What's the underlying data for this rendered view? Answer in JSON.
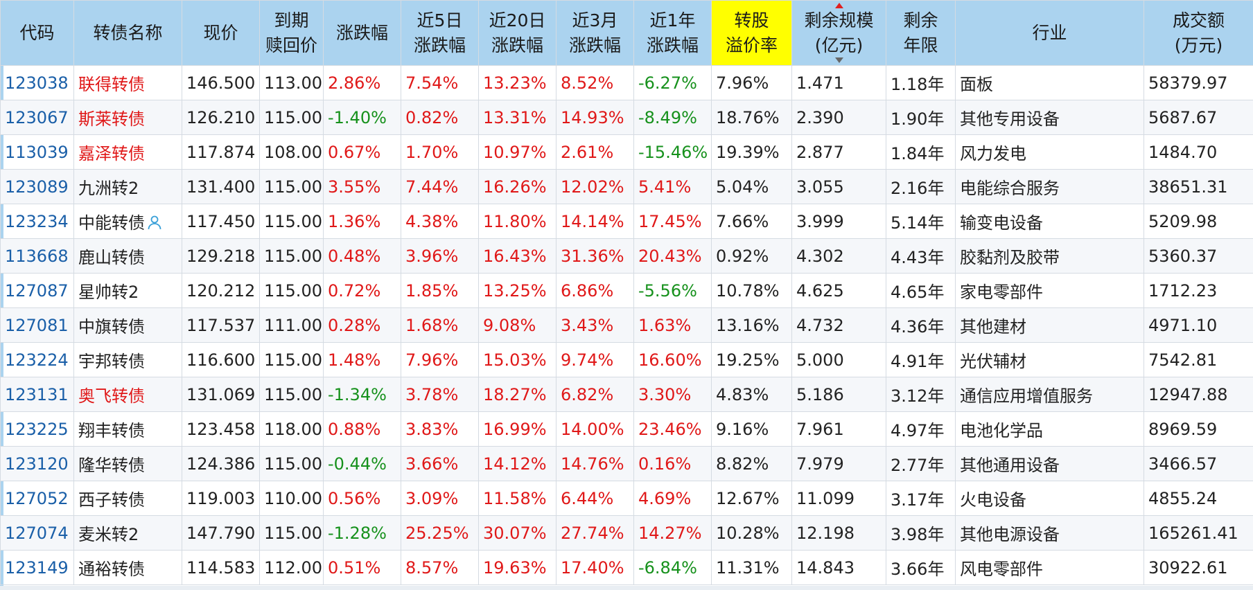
{
  "columns": [
    {
      "key": "code",
      "line1": "代码",
      "line2": ""
    },
    {
      "key": "name",
      "line1": "转债名称",
      "line2": ""
    },
    {
      "key": "price",
      "line1": "现价",
      "line2": ""
    },
    {
      "key": "redeem",
      "line1": "到期",
      "line2": "赎回价"
    },
    {
      "key": "change",
      "line1": "涨跌幅",
      "line2": ""
    },
    {
      "key": "chg5d",
      "line1": "近5日",
      "line2": "涨跌幅"
    },
    {
      "key": "chg20d",
      "line1": "近20日",
      "line2": "涨跌幅"
    },
    {
      "key": "chg3m",
      "line1": "近3月",
      "line2": "涨跌幅"
    },
    {
      "key": "chg1y",
      "line1": "近1年",
      "line2": "涨跌幅"
    },
    {
      "key": "premium",
      "line1": "转股",
      "line2": "溢价率"
    },
    {
      "key": "scale",
      "line1": "剩余规模",
      "line2": "(亿元)"
    },
    {
      "key": "years",
      "line1": "剩余",
      "line2": "年限"
    },
    {
      "key": "industry",
      "line1": "行业",
      "line2": ""
    },
    {
      "key": "turnover",
      "line1": "成交额",
      "line2": "(万元)"
    }
  ],
  "rows": [
    {
      "code": "123038",
      "name": "联得转债",
      "name_red": true,
      "price": "146.500",
      "redeem": "113.00",
      "change": "2.86%",
      "chg5d": "7.54%",
      "chg20d": "13.23%",
      "chg3m": "8.52%",
      "chg1y": "-6.27%",
      "premium": "7.96%",
      "scale": "1.471",
      "years": "1.18年",
      "industry": "面板",
      "turnover": "58379.97"
    },
    {
      "code": "123067",
      "name": "斯莱转债",
      "name_red": true,
      "price": "126.210",
      "redeem": "115.00",
      "change": "-1.40%",
      "chg5d": "0.82%",
      "chg20d": "13.31%",
      "chg3m": "14.93%",
      "chg1y": "-8.49%",
      "premium": "18.76%",
      "scale": "2.390",
      "years": "1.90年",
      "industry": "其他专用设备",
      "turnover": "5687.67"
    },
    {
      "code": "113039",
      "name": "嘉泽转债",
      "name_red": true,
      "price": "117.874",
      "redeem": "108.00",
      "change": "0.67%",
      "chg5d": "1.70%",
      "chg20d": "10.97%",
      "chg3m": "2.61%",
      "chg1y": "-15.46%",
      "premium": "19.39%",
      "scale": "2.877",
      "years": "1.84年",
      "industry": "风力发电",
      "turnover": "1484.70"
    },
    {
      "code": "123089",
      "name": "九洲转2",
      "name_red": false,
      "price": "131.400",
      "redeem": "115.00",
      "change": "3.55%",
      "chg5d": "7.44%",
      "chg20d": "16.26%",
      "chg3m": "12.02%",
      "chg1y": "5.41%",
      "premium": "5.04%",
      "scale": "3.055",
      "years": "2.16年",
      "industry": "电能综合服务",
      "turnover": "38651.31"
    },
    {
      "code": "123234",
      "name": "中能转债",
      "name_red": false,
      "user_icon": true,
      "price": "117.450",
      "redeem": "115.00",
      "change": "1.36%",
      "chg5d": "4.38%",
      "chg20d": "11.80%",
      "chg3m": "14.14%",
      "chg1y": "17.45%",
      "premium": "7.66%",
      "scale": "3.999",
      "years": "5.14年",
      "industry": "输变电设备",
      "turnover": "5209.98"
    },
    {
      "code": "113668",
      "name": "鹿山转债",
      "name_red": false,
      "price": "129.218",
      "redeem": "115.00",
      "change": "0.48%",
      "chg5d": "3.96%",
      "chg20d": "16.43%",
      "chg3m": "31.36%",
      "chg1y": "20.43%",
      "premium": "0.92%",
      "scale": "4.302",
      "years": "4.43年",
      "industry": "胶黏剂及胶带",
      "turnover": "5360.37"
    },
    {
      "code": "127087",
      "name": "星帅转2",
      "name_red": false,
      "price": "120.212",
      "redeem": "115.00",
      "change": "0.72%",
      "chg5d": "1.85%",
      "chg20d": "13.25%",
      "chg3m": "6.86%",
      "chg1y": "-5.56%",
      "premium": "10.78%",
      "scale": "4.625",
      "years": "4.65年",
      "industry": "家电零部件",
      "turnover": "1712.23"
    },
    {
      "code": "127081",
      "name": "中旗转债",
      "name_red": false,
      "price": "117.537",
      "redeem": "111.00",
      "change": "0.28%",
      "chg5d": "1.68%",
      "chg20d": "9.08%",
      "chg3m": "3.43%",
      "chg1y": "1.63%",
      "premium": "13.16%",
      "scale": "4.732",
      "years": "4.36年",
      "industry": "其他建材",
      "turnover": "4971.10"
    },
    {
      "code": "123224",
      "name": "宇邦转债",
      "name_red": false,
      "price": "116.600",
      "redeem": "115.00",
      "change": "1.48%",
      "chg5d": "7.96%",
      "chg20d": "15.03%",
      "chg3m": "9.74%",
      "chg1y": "16.60%",
      "premium": "19.25%",
      "scale": "5.000",
      "years": "4.91年",
      "industry": "光伏辅材",
      "turnover": "7542.81"
    },
    {
      "code": "123131",
      "name": "奥飞转债",
      "name_red": true,
      "price": "131.069",
      "redeem": "115.00",
      "change": "-1.34%",
      "chg5d": "3.78%",
      "chg20d": "18.27%",
      "chg3m": "6.82%",
      "chg1y": "3.30%",
      "premium": "4.83%",
      "scale": "5.186",
      "years": "3.12年",
      "industry": "通信应用增值服务",
      "turnover": "12947.88"
    },
    {
      "code": "123225",
      "name": "翔丰转债",
      "name_red": false,
      "price": "123.458",
      "redeem": "118.00",
      "change": "0.88%",
      "chg5d": "3.83%",
      "chg20d": "16.99%",
      "chg3m": "14.00%",
      "chg1y": "23.46%",
      "premium": "9.16%",
      "scale": "7.961",
      "years": "4.97年",
      "industry": "电池化学品",
      "turnover": "8969.59"
    },
    {
      "code": "123120",
      "name": "隆华转债",
      "name_red": false,
      "price": "124.386",
      "redeem": "115.00",
      "change": "-0.44%",
      "chg5d": "3.66%",
      "chg20d": "14.12%",
      "chg3m": "14.76%",
      "chg1y": "0.16%",
      "premium": "8.82%",
      "scale": "7.979",
      "years": "2.77年",
      "industry": "其他通用设备",
      "turnover": "3466.57"
    },
    {
      "code": "127052",
      "name": "西子转债",
      "name_red": false,
      "price": "119.003",
      "redeem": "110.00",
      "change": "0.56%",
      "chg5d": "3.09%",
      "chg20d": "11.58%",
      "chg3m": "6.44%",
      "chg1y": "4.69%",
      "premium": "12.67%",
      "scale": "11.099",
      "years": "3.17年",
      "industry": "火电设备",
      "turnover": "4855.24"
    },
    {
      "code": "127074",
      "name": "麦米转2",
      "name_red": false,
      "price": "147.790",
      "redeem": "115.00",
      "change": "-1.28%",
      "chg5d": "25.25%",
      "chg20d": "30.07%",
      "chg3m": "27.74%",
      "chg1y": "14.27%",
      "premium": "10.28%",
      "scale": "12.198",
      "years": "3.98年",
      "industry": "其他电源设备",
      "turnover": "165261.41"
    },
    {
      "code": "123149",
      "name": "通裕转债",
      "name_red": false,
      "price": "114.583",
      "redeem": "112.00",
      "change": "0.51%",
      "chg5d": "8.57%",
      "chg20d": "19.63%",
      "chg3m": "17.40%",
      "chg1y": "-6.84%",
      "premium": "11.31%",
      "scale": "14.843",
      "years": "3.66年",
      "industry": "风电零部件",
      "turnover": "30922.61"
    }
  ],
  "colors": {
    "up": "#e01818",
    "down": "#16911c",
    "header": "#abd3ef",
    "highlight": "#ffff00",
    "code": "#1a5fa8"
  },
  "icons": {
    "sort": "sort-triangle-icon",
    "user": "user-outline-icon"
  }
}
